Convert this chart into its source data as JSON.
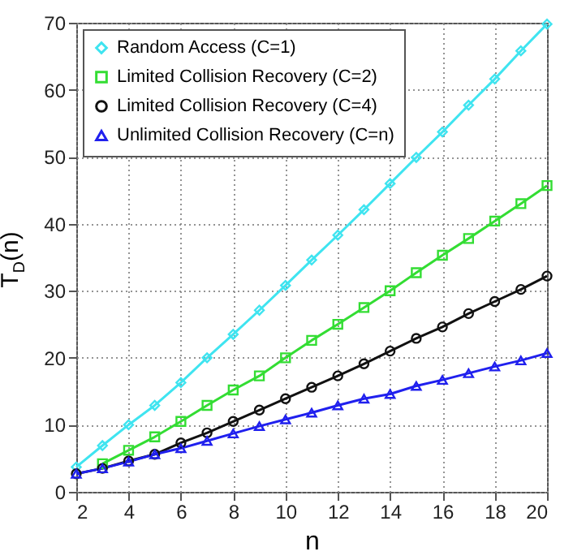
{
  "chart_data": {
    "type": "line",
    "xlabel": "n",
    "ylabel": "T$_{D}$(n)",
    "x": [
      2,
      3,
      4,
      5,
      6,
      7,
      8,
      9,
      10,
      11,
      12,
      13,
      14,
      15,
      16,
      17,
      18,
      19,
      20
    ],
    "series": [
      {
        "name": "Random Access (C=1)",
        "color": "#3fe4f0",
        "marker": "diamond",
        "values": [
          3.7,
          6.9,
          10.0,
          12.9,
          16.3,
          20.0,
          23.5,
          27.1,
          30.8,
          34.6,
          38.3,
          42.1,
          46.0,
          49.9,
          53.7,
          57.7,
          61.6,
          65.8,
          69.8
        ]
      },
      {
        "name": "Limited Collision Recovery (C=2)",
        "color": "#33dd33",
        "marker": "square",
        "values": [
          null,
          4.2,
          6.2,
          8.2,
          10.5,
          12.9,
          15.2,
          17.3,
          20.0,
          22.6,
          25.0,
          27.5,
          30.0,
          32.7,
          35.3,
          37.8,
          40.4,
          43.0,
          45.7
        ]
      },
      {
        "name": "Limited Collision Recovery (C=4)",
        "color": "#111111",
        "marker": "circle",
        "values": [
          2.7,
          3.5,
          4.6,
          5.6,
          7.3,
          8.8,
          10.5,
          12.2,
          13.9,
          15.6,
          17.3,
          19.1,
          21.0,
          22.9,
          24.6,
          26.6,
          28.4,
          30.2,
          32.2
        ]
      },
      {
        "name": "Unlimited Collision Recovery (C=n)",
        "color": "#2020ee",
        "marker": "triangle",
        "values": [
          2.7,
          3.5,
          4.5,
          5.6,
          6.5,
          7.6,
          8.7,
          9.8,
          10.8,
          11.8,
          12.9,
          13.9,
          14.6,
          15.8,
          16.7,
          17.7,
          18.7,
          19.6,
          20.7
        ]
      }
    ],
    "xlim": [
      2,
      20
    ],
    "xticks": [
      2,
      4,
      6,
      8,
      10,
      12,
      14,
      16,
      18,
      20
    ],
    "ylim": [
      0,
      70
    ],
    "yticks": [
      0,
      10,
      20,
      30,
      40,
      50,
      60,
      70
    ],
    "grid": true,
    "legend": "top left",
    "line_style": "solid"
  }
}
